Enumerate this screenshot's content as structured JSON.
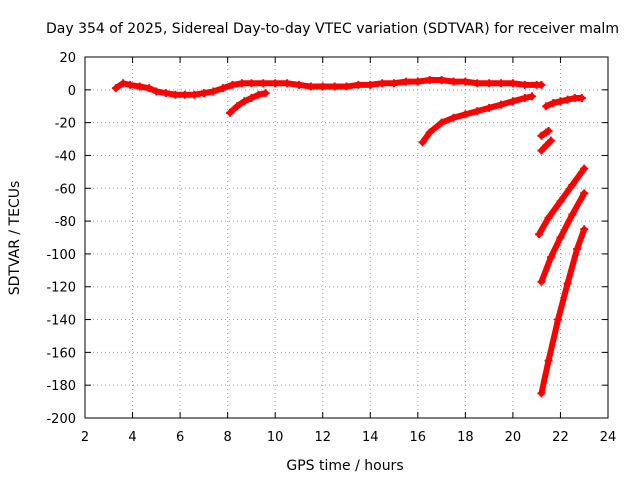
{
  "chart_data": {
    "type": "scatter",
    "title": "Day 354 of 2025, Sidereal Day-to-day VTEC variation (SDTVAR) for receiver malm",
    "xlabel": "GPS time / hours",
    "ylabel": "SDTVAR / TECUs",
    "xlim": [
      2,
      24
    ],
    "ylim": [
      -200,
      20
    ],
    "xticks": [
      2,
      4,
      6,
      8,
      10,
      12,
      14,
      16,
      18,
      20,
      22,
      24
    ],
    "yticks": [
      -200,
      -180,
      -160,
      -140,
      -120,
      -100,
      -80,
      -60,
      -40,
      -20,
      0,
      20
    ],
    "grid": true,
    "series_color": "#ff0000",
    "series": [
      {
        "x": [
          3.3,
          3.6,
          3.9,
          4.3,
          4.7,
          5.0,
          5.4,
          5.8,
          6.2,
          6.6,
          7.0,
          7.4,
          7.8,
          8.2,
          8.6,
          9.0,
          9.5,
          10.0,
          10.5,
          11.0,
          11.5,
          12.0,
          12.5,
          13.0,
          13.5,
          14.0,
          14.5,
          15.0,
          15.5,
          16.0,
          16.5,
          17.0,
          17.5,
          18.0,
          18.5,
          19.0,
          19.5,
          20.0,
          20.5,
          21.0,
          21.2
        ],
        "y": [
          1,
          4,
          3,
          2,
          1,
          -1,
          -2,
          -3,
          -3,
          -3,
          -2,
          -1,
          1,
          3,
          4,
          4,
          4,
          4,
          4,
          3,
          2,
          2,
          2,
          2,
          3,
          3,
          4,
          4,
          5,
          5,
          6,
          6,
          5,
          5,
          4,
          4,
          4,
          4,
          3,
          3,
          3
        ]
      },
      {
        "x": [
          8.1,
          8.4,
          8.7,
          9.0,
          9.3,
          9.6
        ],
        "y": [
          -14,
          -10,
          -7,
          -5,
          -3,
          -2
        ]
      },
      {
        "x": [
          16.2,
          16.5,
          17.0,
          17.5,
          18.0,
          18.5,
          19.0,
          19.5,
          20.0,
          20.5,
          20.8
        ],
        "y": [
          -32,
          -26,
          -20,
          -17,
          -15,
          -13,
          -11,
          -9,
          -7,
          -5,
          -4
        ]
      },
      {
        "x": [
          21.4,
          21.7,
          22.0,
          22.3,
          22.6,
          22.9
        ],
        "y": [
          -10,
          -8,
          -7,
          -6,
          -5,
          -5
        ]
      },
      {
        "x": [
          21.2,
          21.4,
          21.5
        ],
        "y": [
          -28,
          -26,
          -25
        ]
      },
      {
        "x": [
          21.2,
          21.4,
          21.6
        ],
        "y": [
          -37,
          -34,
          -31
        ]
      },
      {
        "x": [
          21.1,
          21.5,
          22.0,
          22.5,
          23.0
        ],
        "y": [
          -88,
          -78,
          -68,
          -58,
          -48
        ]
      },
      {
        "x": [
          21.2,
          21.6,
          22.0,
          22.5,
          23.0
        ],
        "y": [
          -117,
          -102,
          -90,
          -76,
          -63
        ]
      },
      {
        "x": [
          21.2,
          21.5,
          21.9,
          22.3,
          22.7,
          23.0
        ],
        "y": [
          -185,
          -165,
          -140,
          -118,
          -97,
          -85
        ]
      }
    ]
  }
}
